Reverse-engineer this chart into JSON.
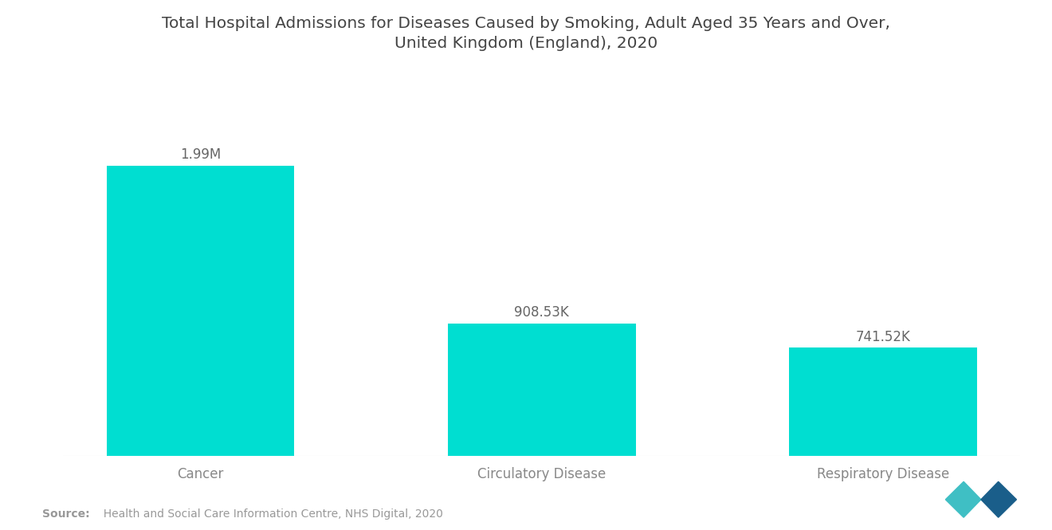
{
  "title": "Total Hospital Admissions for Diseases Caused by Smoking, Adult Aged 35 Years and Over,\nUnited Kingdom (England), 2020",
  "categories": [
    "Cancer",
    "Circulatory Disease",
    "Respiratory Disease"
  ],
  "values": [
    1990000,
    908530,
    741520
  ],
  "value_labels": [
    "1.99M",
    "908.53K",
    "741.52K"
  ],
  "bar_color": "#00DED1",
  "background_color": "#FFFFFF",
  "title_color": "#444444",
  "label_color": "#888888",
  "value_label_color": "#666666",
  "source_bold": "Source:",
  "source_text": "  Health and Social Care Information Centre, NHS Digital, 2020",
  "title_fontsize": 14.5,
  "label_fontsize": 12,
  "value_label_fontsize": 12,
  "source_fontsize": 10,
  "ylim": [
    0,
    2400000
  ],
  "bar_width": 0.55,
  "logo_left_color": "#3FBFC4",
  "logo_right_color": "#1A5E8A"
}
